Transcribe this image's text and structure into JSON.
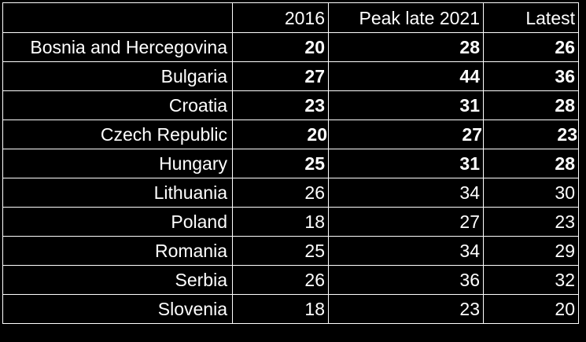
{
  "table": {
    "headers": [
      "",
      "2016",
      "Peak late 2021",
      "Latest"
    ],
    "rows": [
      {
        "country": "Bosnia and Hercegovina",
        "y2016": "20",
        "peak2021": "28",
        "latest": "26",
        "bold": true
      },
      {
        "country": "Bulgaria",
        "y2016": "27",
        "peak2021": "44",
        "latest": "36",
        "bold": true
      },
      {
        "country": "Croatia",
        "y2016": "23",
        "peak2021": "31",
        "latest": "28",
        "bold": true
      },
      {
        "country": "Czech Republic",
        "y2016": "20",
        "peak2021": "27",
        "latest": "23",
        "bold": true
      },
      {
        "country": "Hungary",
        "y2016": "25",
        "peak2021": "31",
        "latest": "28",
        "bold": true
      },
      {
        "country": "Lithuania",
        "y2016": "26",
        "peak2021": "34",
        "latest": "30",
        "bold": false
      },
      {
        "country": "Poland",
        "y2016": "18",
        "peak2021": "27",
        "latest": "23",
        "bold": false
      },
      {
        "country": "Romania",
        "y2016": "25",
        "peak2021": "34",
        "latest": "29",
        "bold": false
      },
      {
        "country": "Serbia",
        "y2016": "26",
        "peak2021": "36",
        "latest": "32",
        "bold": false
      },
      {
        "country": "Slovenia",
        "y2016": "18",
        "peak2021": "23",
        "latest": "20",
        "bold": false
      }
    ]
  }
}
